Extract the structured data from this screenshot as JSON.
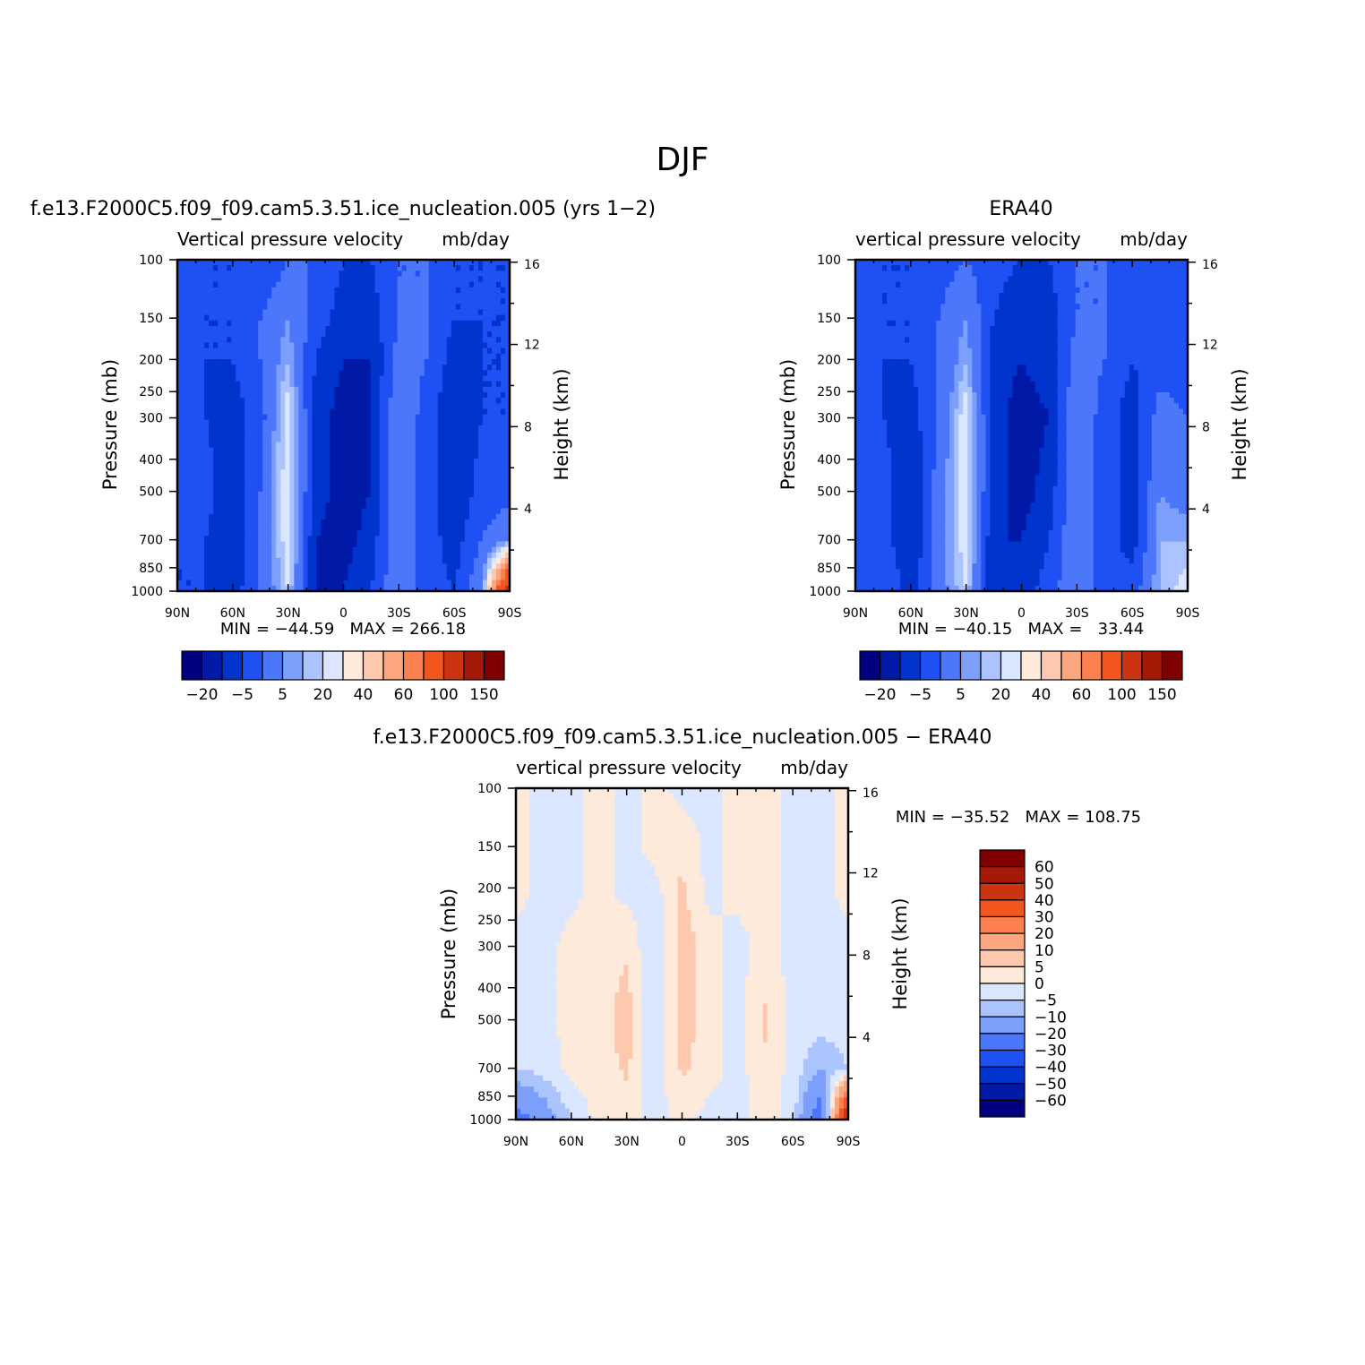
{
  "figure": {
    "title": "DJF"
  },
  "colors": {
    "abs_fill": [
      "#000080",
      "#0019a6",
      "#0034cc",
      "#1f50f3",
      "#4d77fb",
      "#7d9ffc",
      "#acc4fd",
      "#dbe7fe",
      "#feeadb",
      "#fdc9ae",
      "#fca67f",
      "#fb7f4f",
      "#f1561f",
      "#cc3310",
      "#a51a07",
      "#7f0000"
    ],
    "diff_fill": [
      "#000080",
      "#0019a6",
      "#0034cc",
      "#1f50f3",
      "#4d77fb",
      "#7d9ffc",
      "#acc4fd",
      "#dbe7fe",
      "#feeadb",
      "#fdc9ae",
      "#fca67f",
      "#fb7f4f",
      "#f1561f",
      "#cc3310",
      "#a51a07",
      "#7f0000"
    ]
  },
  "chart_data": [
    {
      "type": "heatmap",
      "panel": "model",
      "title": "f.e13.F2000C5.f09_f09.cam5.3.51.ice_nucleation.005 (yrs 1−2)",
      "subtitle_left": "Vertical pressure velocity",
      "subtitle_right": "mb/day",
      "xlabel": "",
      "ylabel": "Pressure (mb)",
      "ylabel_right": "Height (km)",
      "x_ticks": [
        "90N",
        "60N",
        "30N",
        "0",
        "30S",
        "60S",
        "90S"
      ],
      "y_ticks": [
        100,
        150,
        200,
        250,
        300,
        400,
        500,
        700,
        850,
        1000
      ],
      "y_right_ticks": [
        16,
        12,
        8,
        4
      ],
      "y_scale": "log",
      "stats": "MIN = −44.59   MAX = 266.18",
      "colorbar_labels": [
        "−20",
        "−5",
        "5",
        "20",
        "40",
        "60",
        "100",
        "150"
      ],
      "colorbar_orientation": "horizontal",
      "x": [
        90,
        75,
        60,
        45,
        30,
        15,
        0,
        -15,
        -30,
        -45,
        -60,
        -75,
        -90
      ],
      "y": [
        100,
        150,
        200,
        300,
        500,
        700,
        1000
      ],
      "values": [
        [
          -25,
          -30,
          -30,
          -30,
          -20,
          -20,
          -30,
          -30,
          -20,
          -20,
          -30,
          -30,
          -30
        ],
        [
          -25,
          -30,
          -30,
          -20,
          -10,
          -25,
          -35,
          -35,
          -20,
          -20,
          -30,
          -30,
          -30
        ],
        [
          -25,
          -30,
          -30,
          -20,
          -5,
          -30,
          -40,
          -40,
          -15,
          -20,
          -35,
          -30,
          -30
        ],
        [
          -25,
          -30,
          -35,
          -25,
          5,
          -35,
          -45,
          -40,
          -10,
          -25,
          -40,
          -30,
          -30
        ],
        [
          -25,
          -25,
          -40,
          -20,
          5,
          -35,
          -45,
          -40,
          -10,
          -25,
          -40,
          -25,
          -25
        ],
        [
          -30,
          -30,
          -40,
          -20,
          5,
          -40,
          -45,
          -35,
          -10,
          -25,
          -35,
          -20,
          -10
        ],
        [
          -30,
          -30,
          -35,
          -20,
          0,
          -40,
          -40,
          -30,
          -10,
          -25,
          -30,
          -10,
          80
        ]
      ]
    },
    {
      "type": "heatmap",
      "panel": "obs",
      "title": "ERA40",
      "subtitle_left": "vertical pressure velocity",
      "subtitle_right": "mb/day",
      "xlabel": "",
      "ylabel": "Pressure (mb)",
      "ylabel_right": "Height (km)",
      "x_ticks": [
        "90N",
        "60N",
        "30N",
        "0",
        "30S",
        "60S",
        "90S"
      ],
      "y_ticks": [
        100,
        150,
        200,
        250,
        300,
        400,
        500,
        700,
        850,
        1000
      ],
      "y_right_ticks": [
        16,
        12,
        8,
        4
      ],
      "y_scale": "log",
      "stats": "MIN = −40.15   MAX =   33.44",
      "colorbar_labels": [
        "−20",
        "−5",
        "5",
        "20",
        "40",
        "60",
        "100",
        "150"
      ],
      "colorbar_orientation": "horizontal",
      "x": [
        90,
        75,
        60,
        45,
        30,
        15,
        0,
        -15,
        -30,
        -45,
        -60,
        -75,
        -90
      ],
      "y": [
        100,
        150,
        200,
        300,
        500,
        700,
        1000
      ],
      "values": [
        [
          -25,
          -30,
          -30,
          -25,
          -20,
          -25,
          -30,
          -30,
          -20,
          -20,
          -25,
          -25,
          -25
        ],
        [
          -25,
          -30,
          -30,
          -20,
          -10,
          -30,
          -40,
          -35,
          -20,
          -20,
          -30,
          -25,
          -25
        ],
        [
          -25,
          -30,
          -30,
          -20,
          -5,
          -35,
          -40,
          -35,
          -15,
          -20,
          -30,
          -25,
          -25
        ],
        [
          -25,
          -30,
          -35,
          -20,
          5,
          -35,
          -45,
          -40,
          -10,
          -25,
          -35,
          -15,
          -20
        ],
        [
          -25,
          -25,
          -40,
          -15,
          5,
          -35,
          -45,
          -35,
          -10,
          -25,
          -35,
          -10,
          -15
        ],
        [
          -25,
          -25,
          -40,
          -15,
          5,
          -40,
          -40,
          -30,
          -10,
          -25,
          -35,
          -5,
          -5
        ],
        [
          -20,
          -20,
          -35,
          -15,
          0,
          -40,
          -35,
          -25,
          -10,
          -25,
          -25,
          -5,
          5
        ]
      ]
    },
    {
      "type": "heatmap",
      "panel": "difference",
      "title": "f.e13.F2000C5.f09_f09.cam5.3.51.ice_nucleation.005 − ERA40",
      "subtitle_left": "vertical pressure velocity",
      "subtitle_right": "mb/day",
      "xlabel": "",
      "ylabel": "Pressure (mb)",
      "ylabel_right": "Height (km)",
      "x_ticks": [
        "90N",
        "60N",
        "30N",
        "0",
        "30S",
        "60S",
        "90S"
      ],
      "y_ticks": [
        100,
        150,
        200,
        250,
        300,
        400,
        500,
        700,
        850,
        1000
      ],
      "y_right_ticks": [
        16,
        12,
        8,
        4
      ],
      "y_scale": "log",
      "stats": "MIN = −35.52   MAX = 108.75",
      "colorbar_labels": [
        "60",
        "50",
        "40",
        "30",
        "20",
        "10",
        "5",
        "0",
        "−5",
        "−10",
        "−20",
        "−30",
        "−40",
        "−50",
        "−60"
      ],
      "colorbar_orientation": "vertical",
      "x": [
        90,
        75,
        60,
        45,
        30,
        15,
        0,
        -15,
        -30,
        -45,
        -60,
        -75,
        -90
      ],
      "y": [
        100,
        150,
        200,
        300,
        500,
        700,
        1000
      ],
      "values": [
        [
          2,
          -2,
          -2,
          2,
          -2,
          2,
          -2,
          -2,
          2,
          2,
          -2,
          -2,
          2
        ],
        [
          2,
          -2,
          -2,
          2,
          -2,
          2,
          4,
          -2,
          2,
          2,
          -2,
          -2,
          2
        ],
        [
          2,
          -2,
          -2,
          2,
          -2,
          -2,
          6,
          -2,
          2,
          2,
          -2,
          -2,
          2
        ],
        [
          -2,
          -2,
          2,
          2,
          4,
          -5,
          8,
          2,
          -2,
          2,
          -2,
          -2,
          -2
        ],
        [
          -2,
          -2,
          2,
          2,
          8,
          -5,
          8,
          2,
          -2,
          6,
          -2,
          -2,
          -2
        ],
        [
          -5,
          -3,
          2,
          2,
          6,
          -4,
          6,
          2,
          -2,
          4,
          -2,
          -10,
          -5
        ],
        [
          -25,
          -15,
          -5,
          2,
          2,
          -2,
          2,
          -2,
          -2,
          2,
          -2,
          -30,
          60
        ]
      ]
    }
  ]
}
